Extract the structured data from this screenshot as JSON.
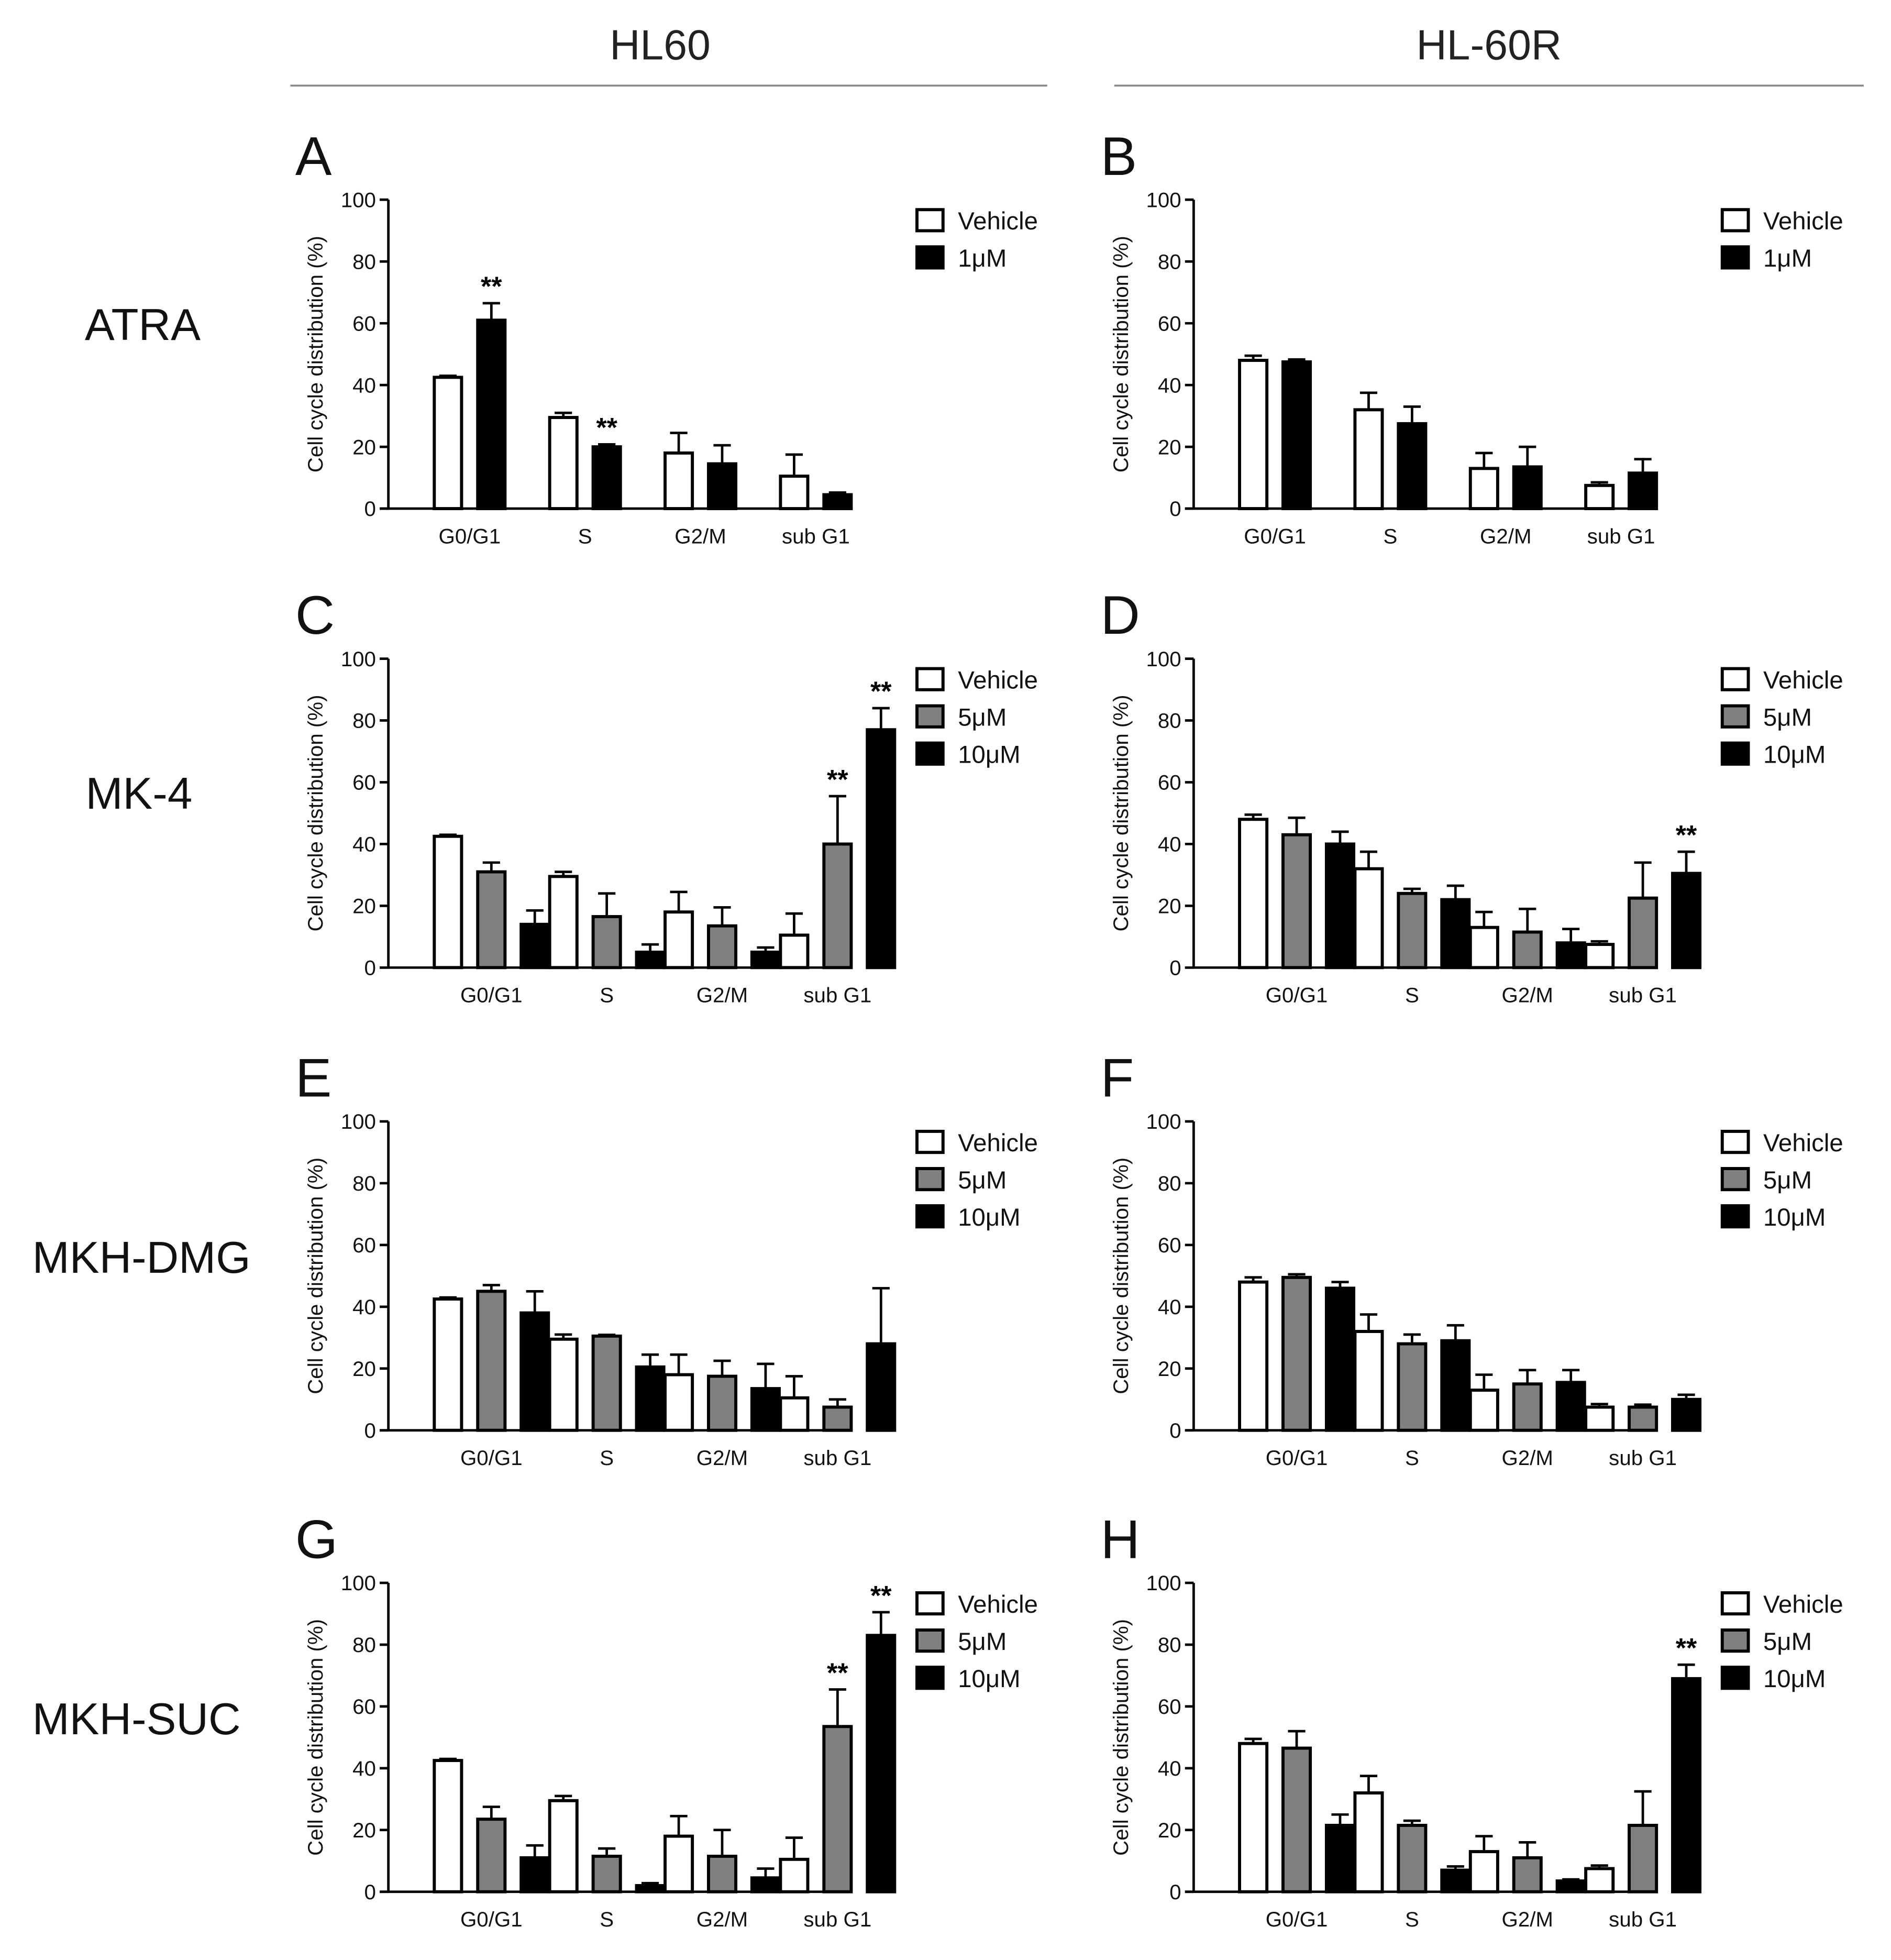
{
  "columns": [
    {
      "title": "HL60"
    },
    {
      "title": "HL-60R"
    }
  ],
  "rows": [
    {
      "label": "ATRA"
    },
    {
      "label": "MK-4"
    },
    {
      "label": "MKH-DMG"
    },
    {
      "label": "MKH-SUC"
    }
  ],
  "colors": {
    "Vehicle": "#ffffff",
    "5μM": "#808080",
    "1μM": "#000000",
    "10μM": "#000000"
  },
  "chart_data": [
    {
      "panel": "A",
      "type": "bar",
      "categories": [
        "G0/G1",
        "S",
        "G2/M",
        "sub G1"
      ],
      "ylabel": "Cell cycle distribution (%)",
      "ylim": [
        0,
        100
      ],
      "yticks": [
        0,
        20,
        40,
        60,
        80,
        100
      ],
      "series": [
        {
          "name": "Vehicle",
          "values": [
            42.5,
            29.5,
            18,
            10.5
          ],
          "errors": [
            0.5,
            1.5,
            6.5,
            7
          ],
          "sig": [
            "",
            "",
            "",
            ""
          ]
        },
        {
          "name": "1μM",
          "values": [
            61,
            20,
            14.5,
            4.5
          ],
          "errors": [
            5.5,
            0.8,
            6,
            0.7
          ],
          "sig": [
            "**",
            "**",
            "",
            ""
          ]
        }
      ]
    },
    {
      "panel": "B",
      "type": "bar",
      "categories": [
        "G0/G1",
        "S",
        "G2/M",
        "sub G1"
      ],
      "ylabel": "Cell cycle distribution (%)",
      "ylim": [
        0,
        100
      ],
      "yticks": [
        0,
        20,
        40,
        60,
        80,
        100
      ],
      "series": [
        {
          "name": "Vehicle",
          "values": [
            48,
            32,
            13,
            7.5
          ],
          "errors": [
            1.5,
            5.5,
            5,
            1
          ],
          "sig": [
            "",
            "",
            "",
            ""
          ]
        },
        {
          "name": "1μM",
          "values": [
            47.5,
            27.5,
            13.5,
            11.5
          ],
          "errors": [
            0.8,
            5.5,
            6.5,
            4.5
          ],
          "sig": [
            "",
            "",
            "",
            ""
          ]
        }
      ]
    },
    {
      "panel": "C",
      "type": "bar",
      "categories": [
        "G0/G1",
        "S",
        "G2/M",
        "sub G1"
      ],
      "ylabel": "Cell cycle distribution (%)",
      "ylim": [
        0,
        100
      ],
      "yticks": [
        0,
        20,
        40,
        60,
        80,
        100
      ],
      "series": [
        {
          "name": "Vehicle",
          "values": [
            42.5,
            29.5,
            18,
            10.5
          ],
          "errors": [
            0.5,
            1.5,
            6.5,
            7
          ],
          "sig": [
            "",
            "",
            "",
            ""
          ]
        },
        {
          "name": "5μM",
          "values": [
            31,
            16.5,
            13.5,
            40
          ],
          "errors": [
            3,
            7.5,
            6,
            15.5
          ],
          "sig": [
            "",
            "",
            "",
            "**"
          ]
        },
        {
          "name": "10μM",
          "values": [
            14,
            5,
            5,
            77
          ],
          "errors": [
            4.5,
            2.5,
            1.5,
            7
          ],
          "sig": [
            "",
            "",
            "",
            "**"
          ]
        }
      ]
    },
    {
      "panel": "D",
      "type": "bar",
      "categories": [
        "G0/G1",
        "S",
        "G2/M",
        "sub G1"
      ],
      "ylabel": "Cell cycle distribution (%)",
      "ylim": [
        0,
        100
      ],
      "yticks": [
        0,
        20,
        40,
        60,
        80,
        100
      ],
      "series": [
        {
          "name": "Vehicle",
          "values": [
            48,
            32,
            13,
            7.5
          ],
          "errors": [
            1.5,
            5.5,
            5,
            1
          ],
          "sig": [
            "",
            "",
            "",
            ""
          ]
        },
        {
          "name": "5μM",
          "values": [
            43,
            24,
            11.5,
            22.5
          ],
          "errors": [
            5.5,
            1.5,
            7.5,
            11.5
          ],
          "sig": [
            "",
            "",
            "",
            ""
          ]
        },
        {
          "name": "10μM",
          "values": [
            40,
            22,
            8,
            30.5
          ],
          "errors": [
            4,
            4.5,
            4.5,
            7
          ],
          "sig": [
            "",
            "",
            "",
            "**"
          ]
        }
      ]
    },
    {
      "panel": "E",
      "type": "bar",
      "categories": [
        "G0/G1",
        "S",
        "G2/M",
        "sub G1"
      ],
      "ylabel": "Cell cycle distribution (%)",
      "ylim": [
        0,
        100
      ],
      "yticks": [
        0,
        20,
        40,
        60,
        80,
        100
      ],
      "series": [
        {
          "name": "Vehicle",
          "values": [
            42.5,
            29.5,
            18,
            10.5
          ],
          "errors": [
            0.5,
            1.5,
            6.5,
            7
          ],
          "sig": [
            "",
            "",
            "",
            ""
          ]
        },
        {
          "name": "5μM",
          "values": [
            45,
            30.5,
            17.5,
            7.5
          ],
          "errors": [
            2,
            0.4,
            5,
            2.5
          ],
          "sig": [
            "",
            "",
            "",
            ""
          ]
        },
        {
          "name": "10μM",
          "values": [
            38,
            20.5,
            13.5,
            28
          ],
          "errors": [
            7,
            4,
            8,
            18
          ],
          "sig": [
            "",
            "",
            "",
            ""
          ]
        }
      ]
    },
    {
      "panel": "F",
      "type": "bar",
      "categories": [
        "G0/G1",
        "S",
        "G2/M",
        "sub G1"
      ],
      "ylabel": "Cell cycle distribution (%)",
      "ylim": [
        0,
        100
      ],
      "yticks": [
        0,
        20,
        40,
        60,
        80,
        100
      ],
      "series": [
        {
          "name": "Vehicle",
          "values": [
            48,
            32,
            13,
            7.5
          ],
          "errors": [
            1.5,
            5.5,
            5,
            1
          ],
          "sig": [
            "",
            "",
            "",
            ""
          ]
        },
        {
          "name": "5μM",
          "values": [
            49.5,
            28,
            15,
            7.5
          ],
          "errors": [
            1,
            3,
            4.5,
            0.8
          ],
          "sig": [
            "",
            "",
            "",
            ""
          ]
        },
        {
          "name": "10μM",
          "values": [
            46,
            29,
            15.5,
            10
          ],
          "errors": [
            2,
            5,
            4,
            1.5
          ],
          "sig": [
            "",
            "",
            "",
            ""
          ]
        }
      ]
    },
    {
      "panel": "G",
      "type": "bar",
      "categories": [
        "G0/G1",
        "S",
        "G2/M",
        "sub G1"
      ],
      "ylabel": "Cell cycle distribution (%)",
      "ylim": [
        0,
        100
      ],
      "yticks": [
        0,
        20,
        40,
        60,
        80,
        100
      ],
      "series": [
        {
          "name": "Vehicle",
          "values": [
            42.5,
            29.5,
            18,
            10.5
          ],
          "errors": [
            0.5,
            1.5,
            6.5,
            7
          ],
          "sig": [
            "",
            "",
            "",
            ""
          ]
        },
        {
          "name": "5μM",
          "values": [
            23.5,
            11.5,
            11.5,
            53.5
          ],
          "errors": [
            4,
            2.5,
            8.5,
            12
          ],
          "sig": [
            "",
            "",
            "",
            "**"
          ]
        },
        {
          "name": "10μM",
          "values": [
            11,
            2,
            4.5,
            83
          ],
          "errors": [
            4,
            0.8,
            3,
            7.5
          ],
          "sig": [
            "",
            "",
            "",
            "**"
          ]
        }
      ]
    },
    {
      "panel": "H",
      "type": "bar",
      "categories": [
        "G0/G1",
        "S",
        "G2/M",
        "sub G1"
      ],
      "ylabel": "Cell cycle distribution (%)",
      "ylim": [
        0,
        100
      ],
      "yticks": [
        0,
        20,
        40,
        60,
        80,
        100
      ],
      "series": [
        {
          "name": "Vehicle",
          "values": [
            48,
            32,
            13,
            7.5
          ],
          "errors": [
            1.5,
            5.5,
            5,
            1
          ],
          "sig": [
            "",
            "",
            "",
            ""
          ]
        },
        {
          "name": "5μM",
          "values": [
            46.5,
            21.5,
            11,
            21.5
          ],
          "errors": [
            5.5,
            1.5,
            5,
            11
          ],
          "sig": [
            "",
            "",
            "",
            ""
          ]
        },
        {
          "name": "10μM",
          "values": [
            21.5,
            7,
            3.5,
            69
          ],
          "errors": [
            3.5,
            1.2,
            0.5,
            4.5
          ],
          "sig": [
            "",
            "",
            "",
            "**"
          ]
        }
      ]
    }
  ]
}
